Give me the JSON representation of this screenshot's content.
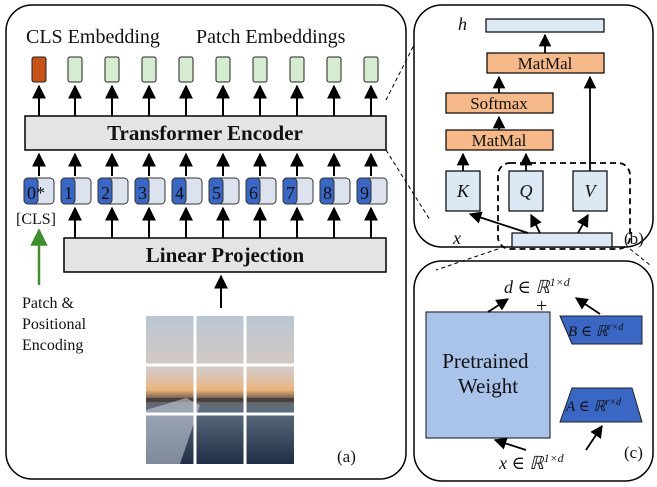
{
  "panel_a": {
    "cls_embedding_label": "CLS Embedding",
    "patch_embeddings_label": "Patch Embeddings",
    "encoder_label": "Transformer Encoder",
    "token_labels": [
      "0*",
      "1",
      "2",
      "3",
      "4",
      "5",
      "6",
      "7",
      "8",
      "9"
    ],
    "cls_label": "[CLS]",
    "projection_label": "Linear Projection",
    "pos_enc_lines": [
      "Patch &",
      "Positional",
      "Encoding"
    ],
    "tag": "(a)"
  },
  "panel_b": {
    "output_label": "h",
    "matmul_top_label": "MatMal",
    "softmax_label": "Softmax",
    "matmul_label": "MatMal",
    "k_label": "K",
    "q_label": "Q",
    "v_label": "V",
    "input_label": "x",
    "tag": "(b)"
  },
  "panel_c": {
    "output_label": "d ∈ ℝ",
    "output_sup": "1×d",
    "plus_label": "+",
    "weight_lines": [
      "Pretrained",
      "Weight"
    ],
    "b_label": "B ∈ ℝ",
    "b_sup": "r×d",
    "a_label": "A ∈ ℝ",
    "a_sup": "r×d",
    "input_label": "x ∈ ℝ",
    "input_sup": "1×d",
    "tag": "(c)"
  },
  "colors": {
    "cls_fill": "#c8531a",
    "patch_fill": "#d6ecd0",
    "token_blue": "#3a66c4",
    "token_light": "#dce3ee",
    "box_gray": "#e4e4e4",
    "orange_box": "#f7b88a",
    "light_blue_box": "#dde8f5",
    "weight_fill": "#a9c3ea",
    "lora_fill": "#3a66c4",
    "arrow_green": "#3e8e2f"
  }
}
